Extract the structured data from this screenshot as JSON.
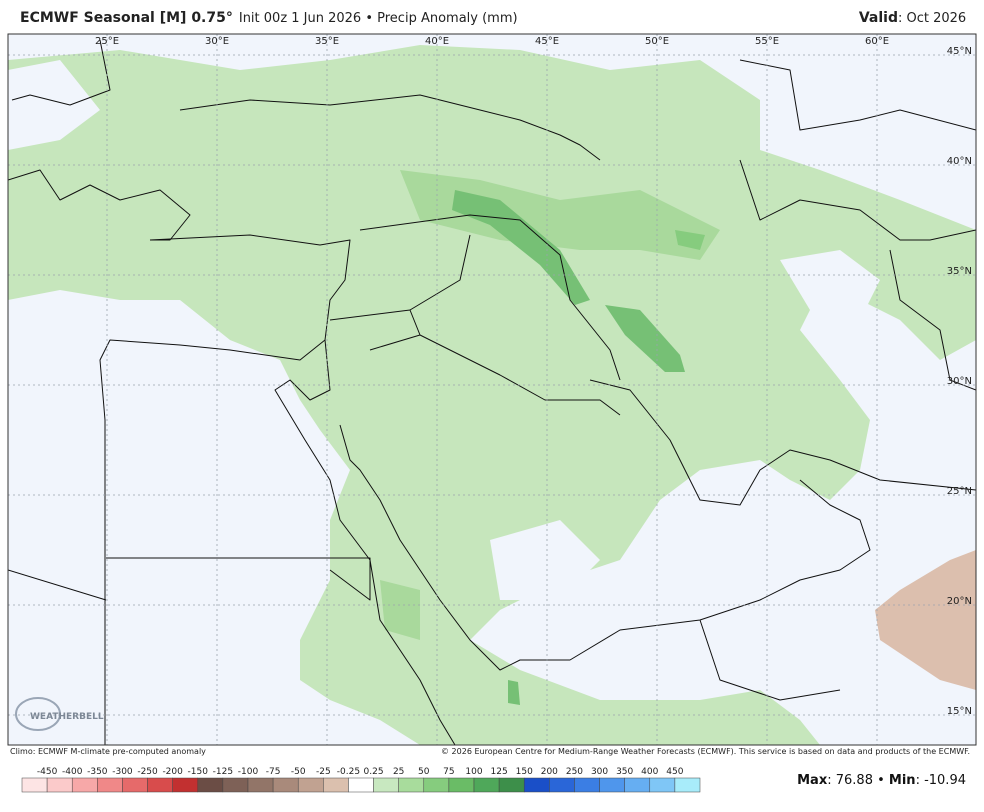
{
  "header": {
    "title": "ECMWF Seasonal [M] 0.75°",
    "subtitle": "Init 00z 1 Jun 2026 • Precip Anomaly (mm)",
    "valid_label": "Valid",
    "valid_value": ": Oct 2026"
  },
  "map": {
    "lon_labels": [
      "25°E",
      "30°E",
      "35°E",
      "40°E",
      "45°E",
      "50°E",
      "55°E",
      "60°E"
    ],
    "lat_labels": [
      "45°N",
      "40°N",
      "35°N",
      "30°N",
      "25°N",
      "20°N",
      "15°N"
    ],
    "watermark": "WEATHERBELL"
  },
  "footer": {
    "climo": "Climo: ECMWF M-climate pre-computed anomaly",
    "copyright": "© 2026 European Centre for Medium-Range Weather Forecasts (ECMWF). This service is based on data and products of the ECMWF."
  },
  "colorbar": {
    "labels": [
      -450,
      -400,
      -350,
      -300,
      -250,
      -200,
      -150,
      -125,
      -100,
      -75,
      -50,
      -25,
      -0.25,
      0.25,
      25,
      50,
      75,
      100,
      125,
      150,
      200,
      250,
      300,
      350,
      400,
      450
    ],
    "colors": [
      "#fde4e4",
      "#fbcaca",
      "#f7a8a8",
      "#f08888",
      "#e66a6a",
      "#d84c4c",
      "#c23030",
      "#6b4d45",
      "#7e6157",
      "#927568",
      "#a98a7b",
      "#c1a291",
      "#dbc0ae",
      "#ffffff",
      "#c8e8c0",
      "#a8dc9c",
      "#86cc7e",
      "#6abc66",
      "#4fa85a",
      "#3d8f4a",
      "#1a4fc8",
      "#2a66d8",
      "#3b7ee4",
      "#4f96ec",
      "#66aef2",
      "#7fc6f6",
      "#a8ecfa"
    ]
  },
  "stats": {
    "max_label": "Max",
    "max": 76.88,
    "min_label": "Min",
    "min": -10.94
  }
}
